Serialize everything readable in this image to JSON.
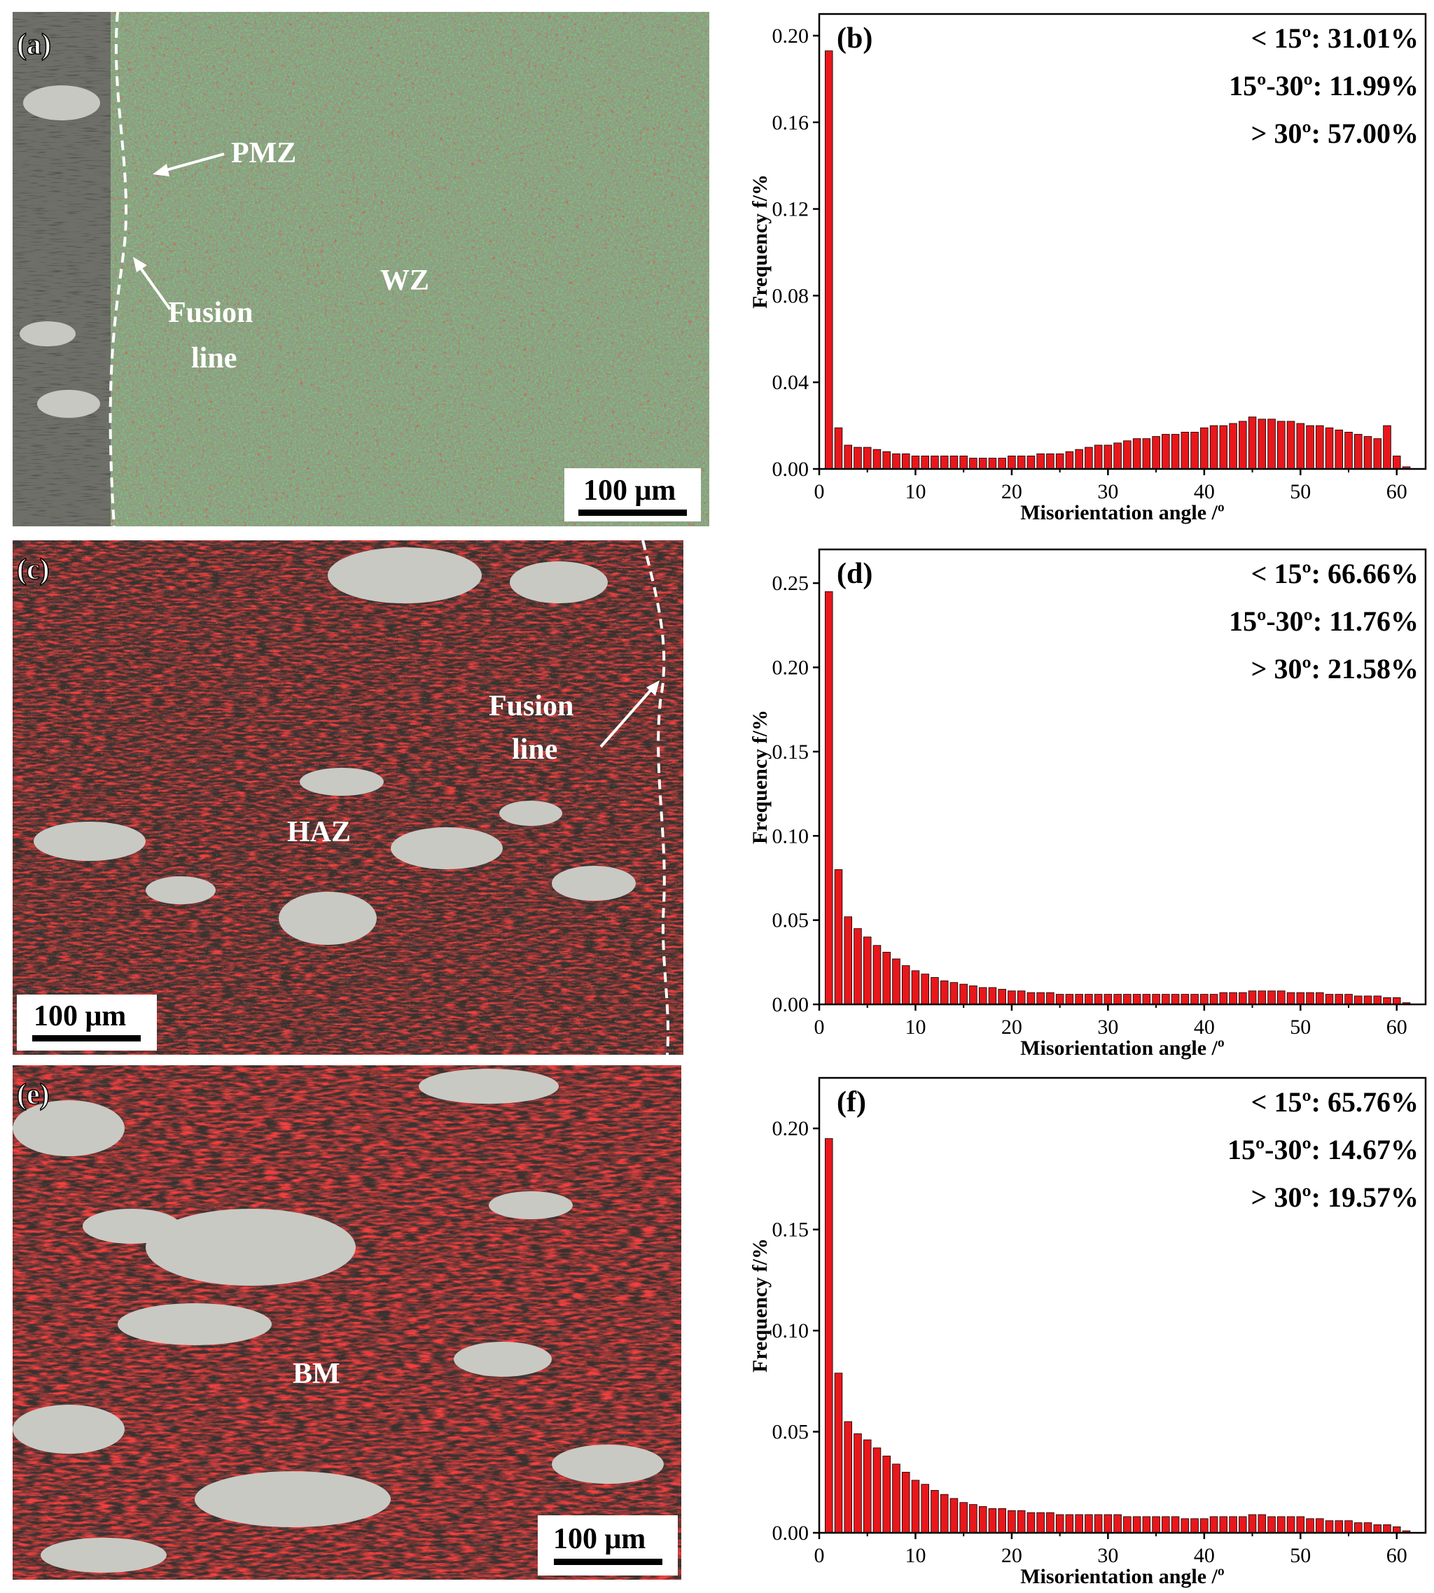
{
  "figure": {
    "panel_a": {
      "label": "(a)",
      "annotations": [
        "PMZ",
        "WZ",
        "Fusion",
        "line"
      ],
      "scale_bar": "100 μm"
    },
    "panel_c": {
      "label": "(c)",
      "annotations": [
        "HAZ",
        "Fusion",
        "line"
      ],
      "scale_bar": "100 μm"
    },
    "panel_e": {
      "label": "(e)",
      "annotations": [
        "BM"
      ],
      "scale_bar": "100 μm"
    }
  },
  "chart_data": [
    {
      "panel": "(b)",
      "type": "bar",
      "xlabel": "Misorientation angle /º",
      "ylabel": "Frequency f/%",
      "xlim": [
        0,
        63
      ],
      "ylim": [
        0,
        0.21
      ],
      "xticks": [
        "0",
        "10",
        "20",
        "30",
        "40",
        "50",
        "60"
      ],
      "yticks": [
        "0.00",
        "0.04",
        "0.08",
        "0.12",
        "0.16",
        "0.20"
      ],
      "bar_color": "#e8171b",
      "stats": [
        "< 15º: 31.01%",
        "15º-30º: 11.99%",
        "> 30º:  57.00%"
      ],
      "x": [
        1,
        2,
        3,
        4,
        5,
        6,
        7,
        8,
        9,
        10,
        11,
        12,
        13,
        14,
        15,
        16,
        17,
        18,
        19,
        20,
        21,
        22,
        23,
        24,
        25,
        26,
        27,
        28,
        29,
        30,
        31,
        32,
        33,
        34,
        35,
        36,
        37,
        38,
        39,
        40,
        41,
        42,
        43,
        44,
        45,
        46,
        47,
        48,
        49,
        50,
        51,
        52,
        53,
        54,
        55,
        56,
        57,
        58,
        59,
        60,
        61
      ],
      "values": [
        0.193,
        0.019,
        0.011,
        0.01,
        0.01,
        0.009,
        0.008,
        0.007,
        0.007,
        0.006,
        0.006,
        0.006,
        0.006,
        0.006,
        0.006,
        0.005,
        0.005,
        0.005,
        0.005,
        0.006,
        0.006,
        0.006,
        0.007,
        0.007,
        0.007,
        0.008,
        0.009,
        0.01,
        0.011,
        0.011,
        0.012,
        0.013,
        0.014,
        0.014,
        0.015,
        0.016,
        0.016,
        0.017,
        0.017,
        0.019,
        0.02,
        0.02,
        0.021,
        0.022,
        0.024,
        0.023,
        0.023,
        0.022,
        0.022,
        0.021,
        0.02,
        0.02,
        0.019,
        0.018,
        0.017,
        0.016,
        0.015,
        0.014,
        0.02,
        0.006,
        0.001
      ]
    },
    {
      "panel": "(d)",
      "type": "bar",
      "xlabel": "Misorientation angle /º",
      "ylabel": "Frequency f/%",
      "xlim": [
        0,
        63
      ],
      "ylim": [
        0,
        0.27
      ],
      "xticks": [
        "0",
        "10",
        "20",
        "30",
        "40",
        "50",
        "60"
      ],
      "yticks": [
        "0.00",
        "0.05",
        "0.10",
        "0.15",
        "0.20",
        "0.25"
      ],
      "bar_color": "#e8171b",
      "stats": [
        "< 15º: 66.66%",
        "15º-30º: 11.76%",
        "> 30º:  21.58%"
      ],
      "x": [
        1,
        2,
        3,
        4,
        5,
        6,
        7,
        8,
        9,
        10,
        11,
        12,
        13,
        14,
        15,
        16,
        17,
        18,
        19,
        20,
        21,
        22,
        23,
        24,
        25,
        26,
        27,
        28,
        29,
        30,
        31,
        32,
        33,
        34,
        35,
        36,
        37,
        38,
        39,
        40,
        41,
        42,
        43,
        44,
        45,
        46,
        47,
        48,
        49,
        50,
        51,
        52,
        53,
        54,
        55,
        56,
        57,
        58,
        59,
        60,
        61
      ],
      "values": [
        0.245,
        0.08,
        0.052,
        0.045,
        0.04,
        0.035,
        0.031,
        0.027,
        0.023,
        0.02,
        0.018,
        0.016,
        0.014,
        0.013,
        0.012,
        0.011,
        0.01,
        0.01,
        0.009,
        0.008,
        0.008,
        0.007,
        0.007,
        0.007,
        0.006,
        0.006,
        0.006,
        0.006,
        0.006,
        0.006,
        0.006,
        0.006,
        0.006,
        0.006,
        0.006,
        0.006,
        0.006,
        0.006,
        0.006,
        0.006,
        0.006,
        0.007,
        0.007,
        0.007,
        0.008,
        0.008,
        0.008,
        0.008,
        0.007,
        0.007,
        0.007,
        0.007,
        0.006,
        0.006,
        0.006,
        0.005,
        0.005,
        0.005,
        0.004,
        0.004,
        0.001
      ]
    },
    {
      "panel": "(f)",
      "type": "bar",
      "xlabel": "Misorientation angle /º",
      "ylabel": "Frequency f/%",
      "xlim": [
        0,
        63
      ],
      "ylim": [
        0,
        0.225
      ],
      "xticks": [
        "0",
        "10",
        "20",
        "30",
        "40",
        "50",
        "60"
      ],
      "yticks": [
        "0.00",
        "0.05",
        "0.10",
        "0.15",
        "0.20"
      ],
      "bar_color": "#e8171b",
      "stats": [
        "< 15º: 65.76%",
        "15º-30º: 14.67%",
        "> 30º:  19.57%"
      ],
      "x": [
        1,
        2,
        3,
        4,
        5,
        6,
        7,
        8,
        9,
        10,
        11,
        12,
        13,
        14,
        15,
        16,
        17,
        18,
        19,
        20,
        21,
        22,
        23,
        24,
        25,
        26,
        27,
        28,
        29,
        30,
        31,
        32,
        33,
        34,
        35,
        36,
        37,
        38,
        39,
        40,
        41,
        42,
        43,
        44,
        45,
        46,
        47,
        48,
        49,
        50,
        51,
        52,
        53,
        54,
        55,
        56,
        57,
        58,
        59,
        60,
        61
      ],
      "values": [
        0.195,
        0.079,
        0.055,
        0.049,
        0.046,
        0.042,
        0.038,
        0.034,
        0.03,
        0.026,
        0.024,
        0.021,
        0.019,
        0.017,
        0.015,
        0.014,
        0.013,
        0.012,
        0.012,
        0.011,
        0.011,
        0.01,
        0.01,
        0.01,
        0.009,
        0.009,
        0.009,
        0.009,
        0.009,
        0.009,
        0.009,
        0.008,
        0.008,
        0.008,
        0.008,
        0.008,
        0.008,
        0.007,
        0.007,
        0.007,
        0.008,
        0.008,
        0.008,
        0.008,
        0.009,
        0.009,
        0.008,
        0.008,
        0.008,
        0.008,
        0.007,
        0.007,
        0.006,
        0.006,
        0.006,
        0.005,
        0.005,
        0.004,
        0.004,
        0.003,
        0.001
      ]
    }
  ]
}
